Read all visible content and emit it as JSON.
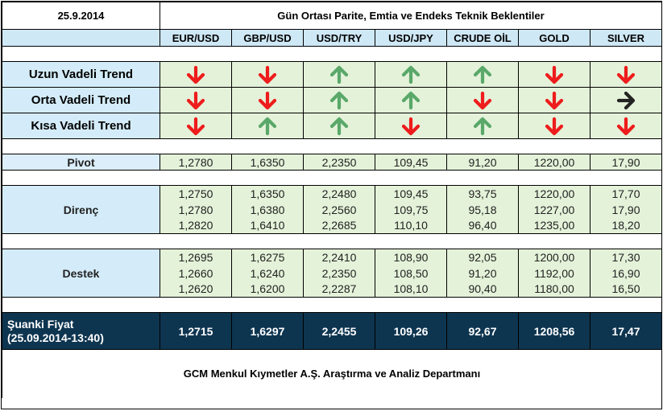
{
  "header": {
    "date": "25.9.2014",
    "title": "Gün Ortası Parite, Emtia ve Endeks Teknik Beklentiler"
  },
  "columns": [
    "EUR/USD",
    "GBP/USD",
    "USD/TRY",
    "USD/JPY",
    "CRUDE OİL",
    "GOLD",
    "SILVER"
  ],
  "trends": [
    {
      "label": "Uzun Vadeli Trend",
      "directions": [
        "down",
        "down",
        "up",
        "up",
        "up",
        "down",
        "down"
      ]
    },
    {
      "label": "Orta Vadeli Trend",
      "directions": [
        "down",
        "down",
        "up",
        "up",
        "down",
        "down",
        "right"
      ]
    },
    {
      "label": "Kısa Vadeli Trend",
      "directions": [
        "down",
        "up",
        "up",
        "down",
        "up",
        "down",
        "down"
      ]
    }
  ],
  "colors": {
    "down": "#ee1c1c",
    "up": "#5aa86a",
    "right": "#222222",
    "header_blue": "#cfe8f6",
    "cell_green": "#e4f2d9",
    "dark_navy": "#0e3550"
  },
  "pivot": {
    "label": "Pivot",
    "values": [
      "1,2780",
      "1,6350",
      "2,2350",
      "109,45",
      "91,20",
      "1220,00",
      "17,90"
    ]
  },
  "resistance": {
    "label": "Direnç",
    "rows": [
      [
        "1,2750",
        "1,6350",
        "2,2480",
        "109,45",
        "93,75",
        "1220,00",
        "17,70"
      ],
      [
        "1,2780",
        "1,6380",
        "2,2560",
        "109,75",
        "95,18",
        "1227,00",
        "17,90"
      ],
      [
        "1,2820",
        "1,6410",
        "2,2685",
        "110,10",
        "96,40",
        "1235,00",
        "18,20"
      ]
    ]
  },
  "support": {
    "label": "Destek",
    "rows": [
      [
        "1,2695",
        "1,6275",
        "2,2410",
        "108,90",
        "92,05",
        "1200,00",
        "17,30"
      ],
      [
        "1,2660",
        "1,6240",
        "2,2350",
        "108,50",
        "91,20",
        "1192,00",
        "16,90"
      ],
      [
        "1,2620",
        "1,6200",
        "2,2287",
        "108,10",
        "90,40",
        "1180,00",
        "16,50"
      ]
    ]
  },
  "current": {
    "label_line1": "Şuanki Fiyat",
    "label_line2": "(25.09.2014-13:40)",
    "values": [
      "1,2715",
      "1,6297",
      "2,2455",
      "109,26",
      "92,67",
      "1208,56",
      "17,47"
    ]
  },
  "footer": "GCM Menkul Kıymetler A.Ş. Araştırma ve Analiz Departmanı"
}
